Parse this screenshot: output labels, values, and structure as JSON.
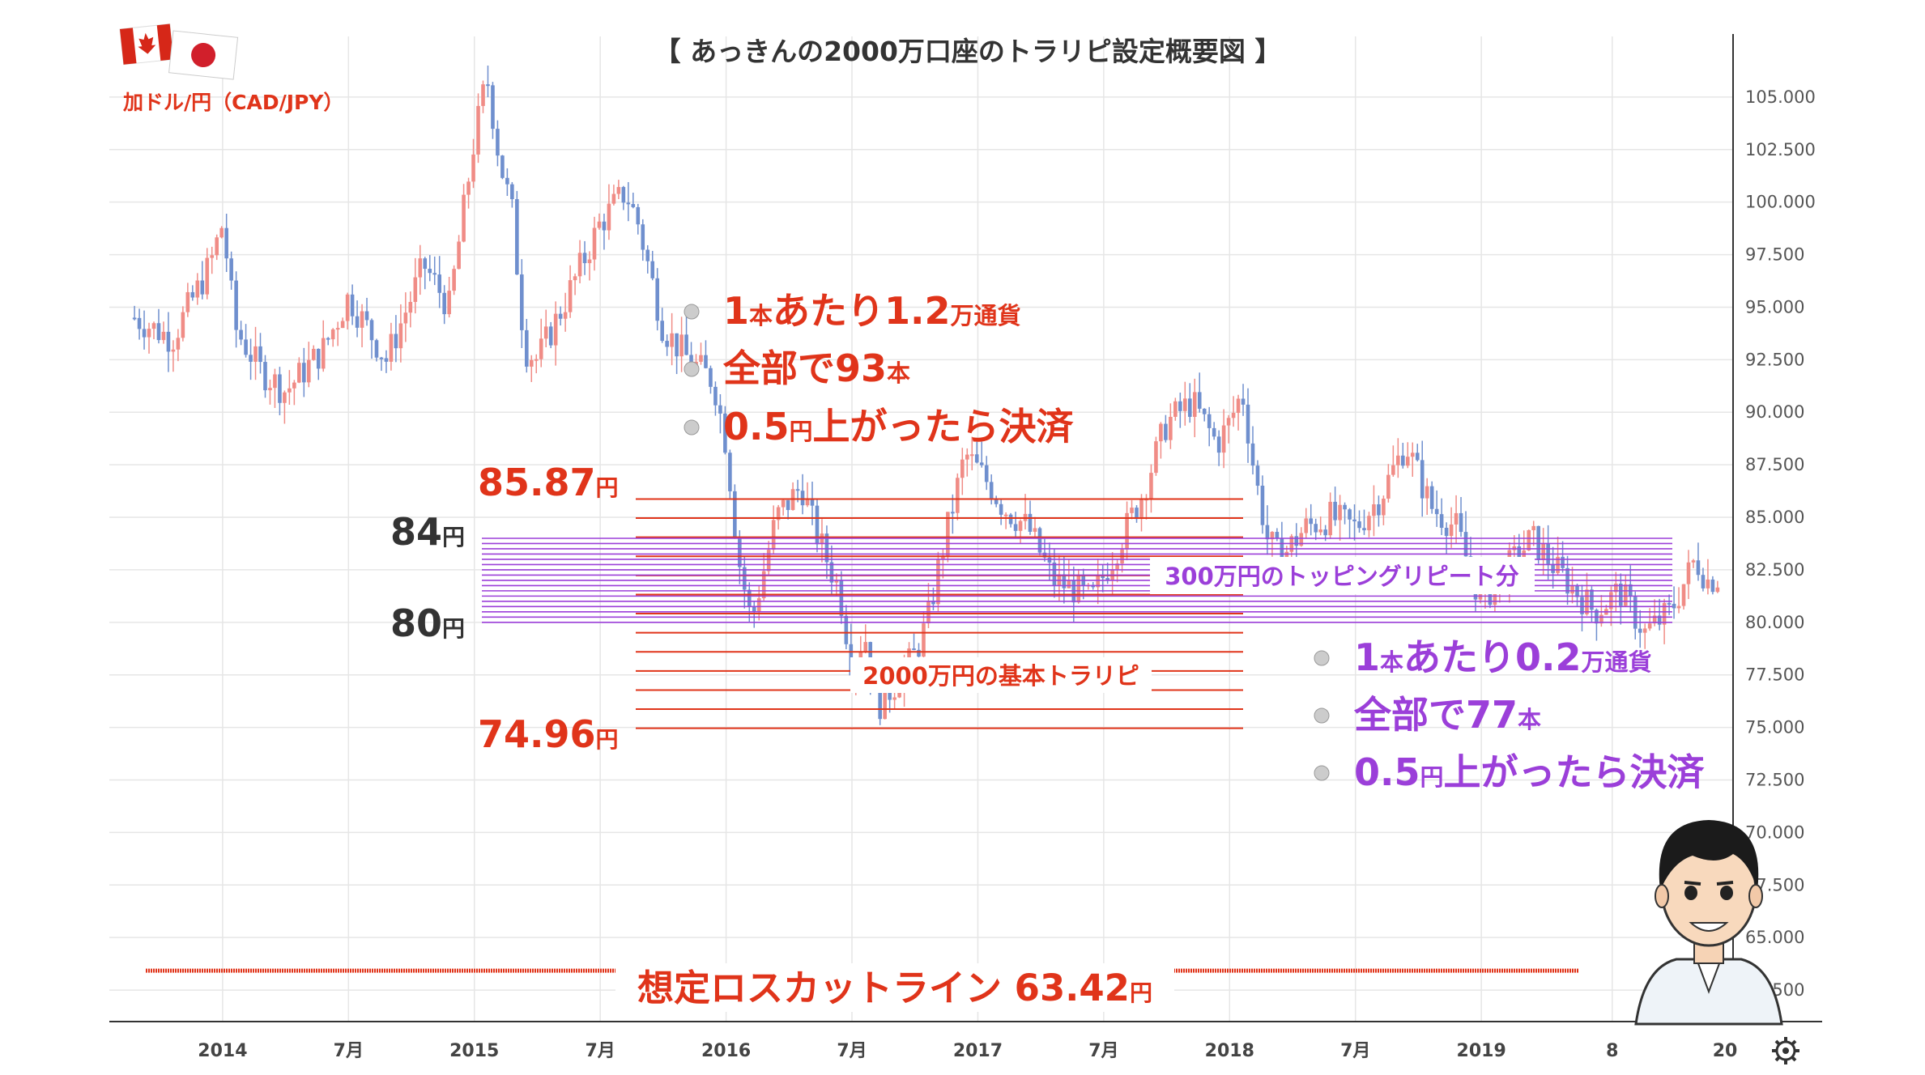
{
  "header": {
    "title": "【 あっきんの2000万口座のトラリピ設定概要図 】",
    "pair": "加ドル/円（CAD/JPY）"
  },
  "colors": {
    "red": "#e0341a",
    "purple": "#9b3fd9",
    "candle_up": "#f08c86",
    "candle_down": "#6f8fce",
    "grid": "#e6e6e6",
    "axis_text": "#555555"
  },
  "icons": [
    "canada-flag-icon",
    "japan-flag-icon",
    "gear-icon",
    "avatar"
  ],
  "chart_data": {
    "type": "candlestick",
    "ylim": [
      61.0,
      107.5
    ],
    "y_ticks": [
      "105.000",
      "102.500",
      "100.000",
      "97.500",
      "95.000",
      "92.500",
      "90.000",
      "87.500",
      "85.000",
      "82.500",
      "80.000",
      "77.500",
      "75.000",
      "72.500",
      "70.000",
      "67.500",
      "65.000",
      "62.500"
    ],
    "x_ticks": [
      "2014",
      "7月",
      "2015",
      "7月",
      "2016",
      "7月",
      "2017",
      "7月",
      "2018",
      "7月",
      "2019",
      "8",
      "20"
    ],
    "price_path": [
      [
        2013.65,
        94.5
      ],
      [
        2013.8,
        93.5
      ],
      [
        2013.95,
        97.0
      ],
      [
        2014.0,
        99.0
      ],
      [
        2014.05,
        94.0
      ],
      [
        2014.15,
        92.0
      ],
      [
        2014.25,
        91.0
      ],
      [
        2014.4,
        93.0
      ],
      [
        2014.5,
        95.5
      ],
      [
        2014.6,
        93.5
      ],
      [
        2014.65,
        92.5
      ],
      [
        2014.8,
        97.0
      ],
      [
        2014.9,
        95.0
      ],
      [
        2014.95,
        99.0
      ],
      [
        2015.0,
        103.0
      ],
      [
        2015.05,
        106.0
      ],
      [
        2015.1,
        102.0
      ],
      [
        2015.15,
        99.5
      ],
      [
        2015.2,
        93.0
      ],
      [
        2015.25,
        92.5
      ],
      [
        2015.35,
        95.0
      ],
      [
        2015.5,
        99.0
      ],
      [
        2015.6,
        100.5
      ],
      [
        2015.65,
        99.0
      ],
      [
        2015.75,
        94.0
      ],
      [
        2015.85,
        92.5
      ],
      [
        2015.95,
        91.5
      ],
      [
        2016.0,
        88.5
      ],
      [
        2016.05,
        83.0
      ],
      [
        2016.1,
        80.0
      ],
      [
        2016.2,
        85.0
      ],
      [
        2016.3,
        86.5
      ],
      [
        2016.35,
        84.5
      ],
      [
        2016.45,
        81.5
      ],
      [
        2016.5,
        78.0
      ],
      [
        2016.55,
        79.5
      ],
      [
        2016.6,
        76.0
      ],
      [
        2016.7,
        77.5
      ],
      [
        2016.75,
        78.5
      ],
      [
        2016.8,
        80.0
      ],
      [
        2016.85,
        83.0
      ],
      [
        2016.95,
        88.0
      ],
      [
        2017.05,
        86.5
      ],
      [
        2017.1,
        85.5
      ],
      [
        2017.2,
        84.5
      ],
      [
        2017.3,
        82.0
      ],
      [
        2017.4,
        81.5
      ],
      [
        2017.45,
        81.0
      ],
      [
        2017.55,
        83.5
      ],
      [
        2017.65,
        86.0
      ],
      [
        2017.75,
        89.5
      ],
      [
        2017.85,
        90.5
      ],
      [
        2017.95,
        88.5
      ],
      [
        2018.0,
        89.5
      ],
      [
        2018.05,
        91.0
      ],
      [
        2018.1,
        87.0
      ],
      [
        2018.15,
        84.0
      ],
      [
        2018.2,
        83.0
      ],
      [
        2018.3,
        84.5
      ],
      [
        2018.4,
        85.0
      ],
      [
        2018.5,
        84.5
      ],
      [
        2018.6,
        86.0
      ],
      [
        2018.7,
        88.5
      ],
      [
        2018.8,
        85.5
      ],
      [
        2018.9,
        84.5
      ],
      [
        2018.97,
        82.0
      ],
      [
        2019.0,
        81.0
      ],
      [
        2019.1,
        82.5
      ],
      [
        2019.2,
        84.0
      ],
      [
        2019.3,
        82.5
      ],
      [
        2019.45,
        80.5
      ],
      [
        2019.55,
        81.5
      ],
      [
        2019.65,
        79.5
      ],
      [
        2019.75,
        80.5
      ],
      [
        2019.85,
        83.0
      ],
      [
        2019.9,
        82.0
      ],
      [
        2019.95,
        82.2
      ]
    ],
    "trap_basic": {
      "label": "2000万円の基本トラリピ",
      "top": 85.87,
      "bottom": 74.96,
      "count": 13,
      "top_label": "85.87",
      "bottom_label": "74.96",
      "unit": "円"
    },
    "trap_topping": {
      "label": "300万円のトッピングリピート分",
      "top": 84,
      "bottom": 80,
      "count": 17,
      "top_label": "84",
      "bottom_label": "80",
      "unit": "円"
    },
    "loss_cut": {
      "label": "想定ロスカットライン 63.42",
      "value": 63.42,
      "unit": "円"
    },
    "notes_red": [
      {
        "a": "1",
        "b": "本",
        "c": "あたり1.2",
        "d": "万通貨"
      },
      {
        "a": "全部で93",
        "b": "本",
        "c": "",
        "d": ""
      },
      {
        "a": "0.5",
        "b": "円",
        "c": "上がったら決済",
        "d": ""
      }
    ],
    "notes_purple": [
      {
        "a": "1",
        "b": "本",
        "c": "あたり0.2",
        "d": "万通貨"
      },
      {
        "a": "全部で77",
        "b": "本",
        "c": "",
        "d": ""
      },
      {
        "a": "0.5",
        "b": "円",
        "c": "上がったら決済",
        "d": ""
      }
    ]
  }
}
